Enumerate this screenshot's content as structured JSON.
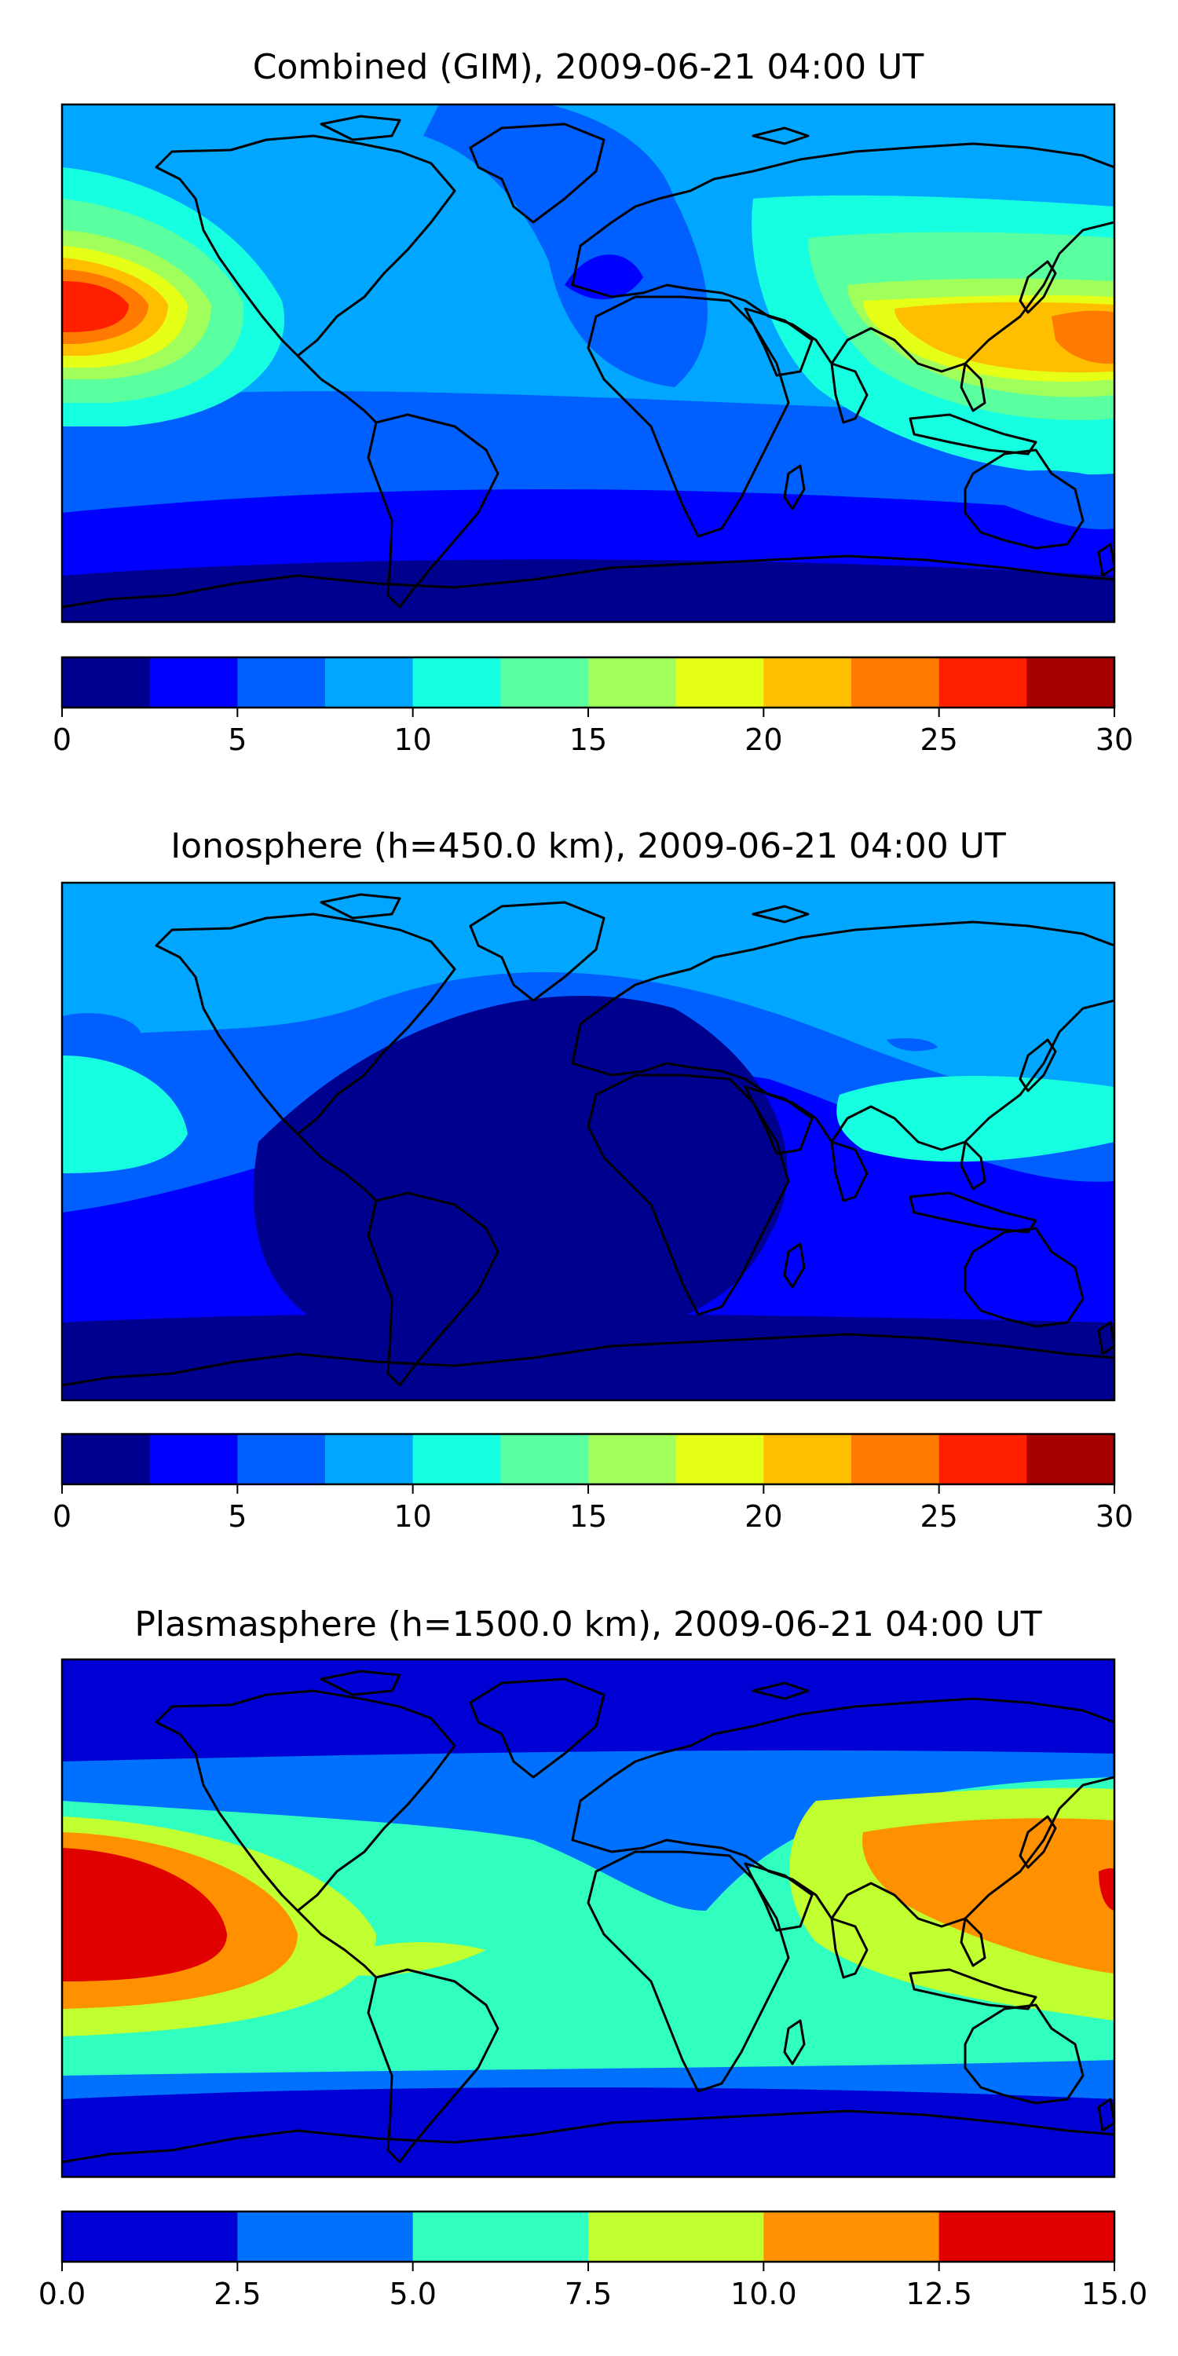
{
  "panels": [
    {
      "title": "Combined (GIM), 2009-06-21 04:00 UT",
      "colorbar": {
        "colors": [
          "#00008f",
          "#0000ff",
          "#0060ff",
          "#00a6ff",
          "#16ffe1",
          "#5affa0",
          "#a0ff5a",
          "#e6ff16",
          "#ffbf00",
          "#ff7a00",
          "#ff2000",
          "#a60000"
        ],
        "ticks": [
          "0",
          "5",
          "10",
          "15",
          "20",
          "25",
          "30"
        ]
      }
    },
    {
      "title": "Ionosphere  (h=450.0 km), 2009-06-21 04:00 UT",
      "colorbar": {
        "colors": [
          "#00008f",
          "#0000ff",
          "#0060ff",
          "#00a6ff",
          "#16ffe1",
          "#5affa0",
          "#a0ff5a",
          "#e6ff16",
          "#ffbf00",
          "#ff7a00",
          "#ff2000",
          "#a60000"
        ],
        "ticks": [
          "0",
          "5",
          "10",
          "15",
          "20",
          "25",
          "30"
        ]
      }
    },
    {
      "title": "Plasmasphere (h=1500.0 km), 2009-06-21 04:00 UT",
      "colorbar": {
        "colors": [
          "#0000d4",
          "#0070ff",
          "#30ffc0",
          "#c0ff30",
          "#ff9000",
          "#e00000"
        ],
        "ticks": [
          "0.0",
          "2.5",
          "5.0",
          "7.5",
          "10.0",
          "12.5",
          "15.0"
        ]
      }
    }
  ]
}
